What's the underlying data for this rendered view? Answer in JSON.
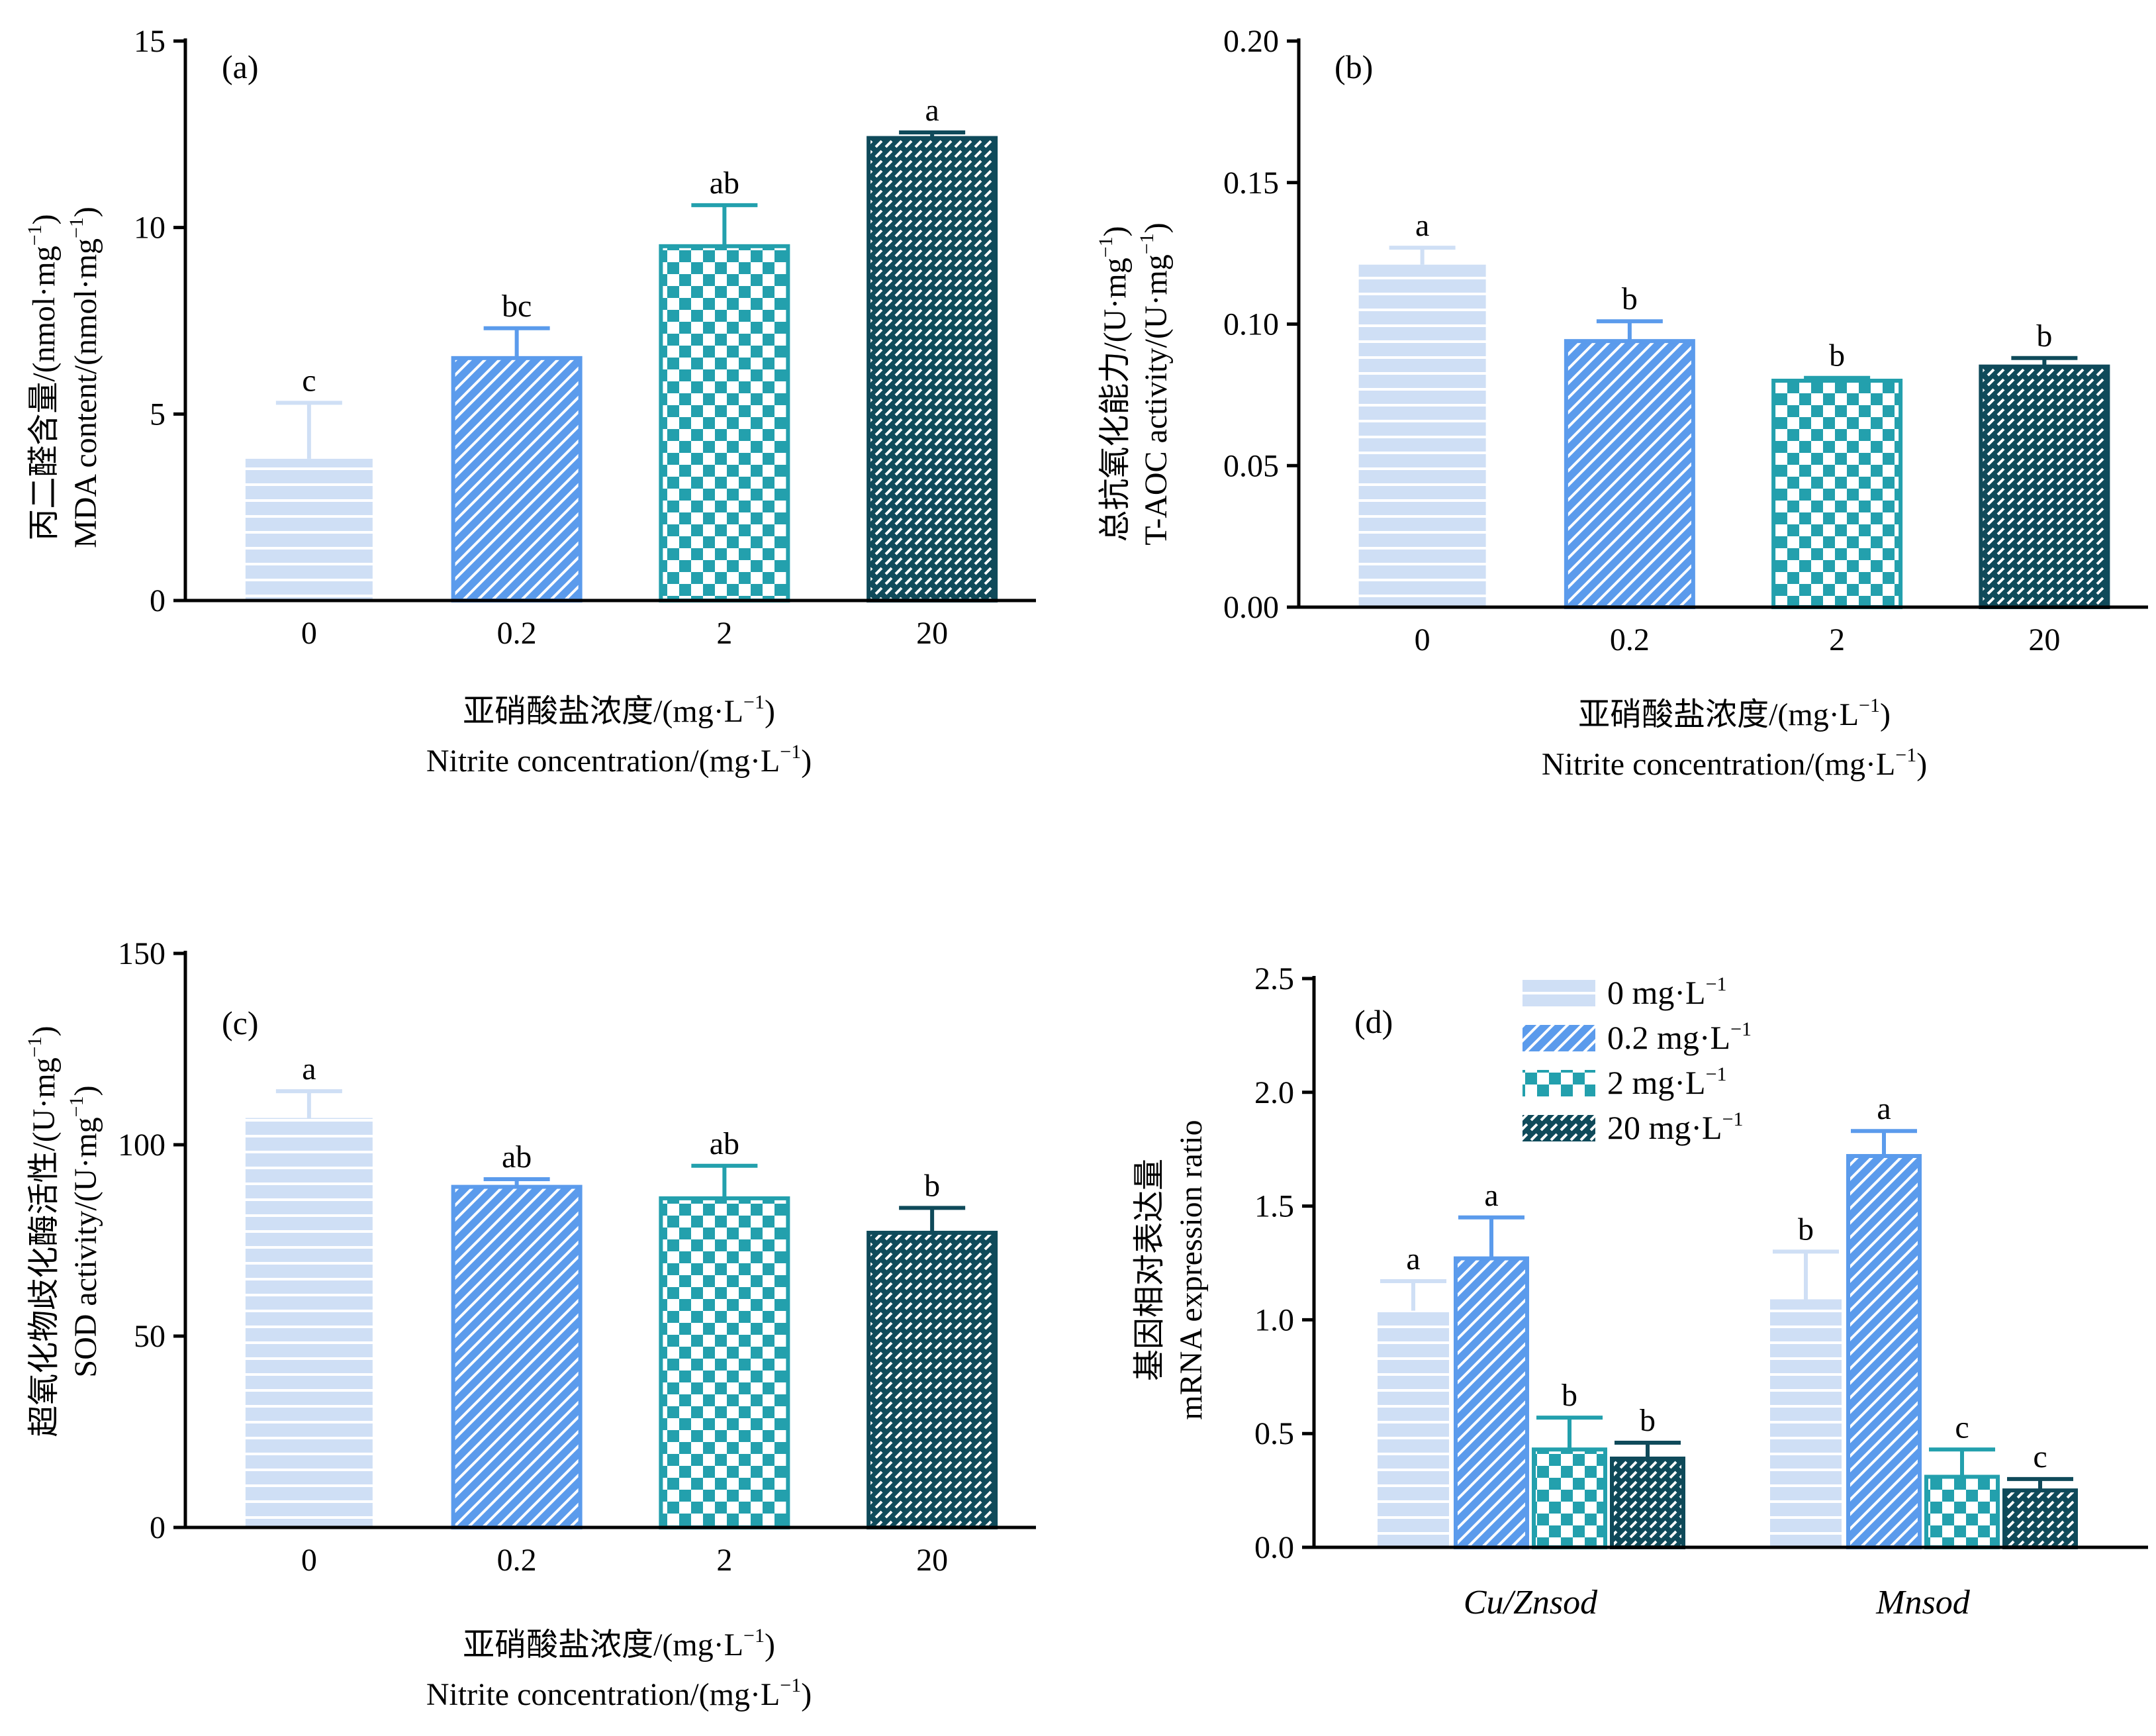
{
  "colors": {
    "c0": "#cfdff5",
    "c1": "#5b9bec",
    "c2": "#23a0ad",
    "c3": "#0f4a5a",
    "axis": "#000000"
  },
  "chart_data": [
    {
      "type": "bar",
      "panel_label": "(a)",
      "categories": [
        "0",
        "0.2",
        "2",
        "20"
      ],
      "values": [
        3.8,
        6.5,
        9.5,
        12.4
      ],
      "errors": [
        1.5,
        0.8,
        1.1,
        0.15
      ],
      "significance": [
        "c",
        "bc",
        "ab",
        "a"
      ],
      "ylim": [
        0,
        15
      ],
      "yticks": [
        0,
        5,
        10,
        15
      ],
      "ytick_labels": [
        "0",
        "5",
        "10",
        "15"
      ],
      "ylabel_cn": "丙二醛含量/(nmol·mg",
      "ylabel_en": "MDA content/(nmol·mg",
      "ylabel_sup": "−1",
      "ylabel_close": ")",
      "xlabel_cn": "亚硝酸盐浓度/(mg·L",
      "xlabel_en": "Nitrite concentration/(mg·L",
      "xlabel_sup": "−1",
      "xlabel_close": ")"
    },
    {
      "type": "bar",
      "panel_label": "(b)",
      "categories": [
        "0",
        "0.2",
        "2",
        "20"
      ],
      "values": [
        0.121,
        0.094,
        0.08,
        0.085
      ],
      "errors": [
        0.006,
        0.007,
        0.001,
        0.003
      ],
      "significance": [
        "a",
        "b",
        "b",
        "b"
      ],
      "ylim": [
        0,
        0.2
      ],
      "yticks": [
        0,
        0.05,
        0.1,
        0.15,
        0.2
      ],
      "ytick_labels": [
        "0.00",
        "0.05",
        "0.10",
        "0.15",
        "0.20"
      ],
      "ylabel_cn": "总抗氧化能力/(U·mg",
      "ylabel_en": "T-AOC activity/(U·mg",
      "ylabel_sup": "−1",
      "ylabel_close": ")",
      "xlabel_cn": "亚硝酸盐浓度/(mg·L",
      "xlabel_en": "Nitrite concentration/(mg·L",
      "xlabel_sup": "−1",
      "xlabel_close": ")"
    },
    {
      "type": "bar",
      "panel_label": "(c)",
      "categories": [
        "0",
        "0.2",
        "2",
        "20"
      ],
      "values": [
        107,
        89,
        86,
        77
      ],
      "errors": [
        7,
        2,
        8.5,
        6.5
      ],
      "significance": [
        "a",
        "ab",
        "ab",
        "b"
      ],
      "ylim": [
        0,
        150
      ],
      "yticks": [
        0,
        50,
        100,
        150
      ],
      "ytick_labels": [
        "0",
        "50",
        "100",
        "150"
      ],
      "ylabel_cn": "超氧化物歧化酶活性/(U·mg",
      "ylabel_en": "SOD activity/(U·mg",
      "ylabel_sup": "−1",
      "ylabel_close": ")",
      "xlabel_cn": "亚硝酸盐浓度/(mg·L",
      "xlabel_en": "Nitrite concentration/(mg·L",
      "xlabel_sup": "−1",
      "xlabel_close": ")"
    },
    {
      "type": "bar",
      "panel_label": "(d)",
      "categories": [
        "Cu/Znsod",
        "Mnsod"
      ],
      "series": [
        {
          "name": "0 mg·L",
          "sup": "−1",
          "values": [
            1.04,
            1.09
          ],
          "errors": [
            0.13,
            0.21
          ],
          "significance": [
            "a",
            "b"
          ]
        },
        {
          "name": "0.2 mg·L",
          "sup": "−1",
          "values": [
            1.27,
            1.72
          ],
          "errors": [
            0.18,
            0.11
          ],
          "significance": [
            "a",
            "a"
          ]
        },
        {
          "name": "2 mg·L",
          "sup": "−1",
          "values": [
            0.43,
            0.31
          ],
          "errors": [
            0.14,
            0.12
          ],
          "significance": [
            "b",
            "c"
          ]
        },
        {
          "name": "20 mg·L",
          "sup": "−1",
          "values": [
            0.39,
            0.25
          ],
          "errors": [
            0.07,
            0.05
          ],
          "significance": [
            "b",
            "c"
          ]
        }
      ],
      "ylim": [
        0,
        2.5
      ],
      "yticks": [
        0,
        0.5,
        1,
        1.5,
        2,
        2.5
      ],
      "ytick_labels": [
        "0.0",
        "0.5",
        "1.0",
        "1.5",
        "2.0",
        "2.5"
      ],
      "ylabel_cn": "基因相对表达量",
      "ylabel_en": "mRNA expression ratio",
      "legend_position": "top"
    }
  ]
}
